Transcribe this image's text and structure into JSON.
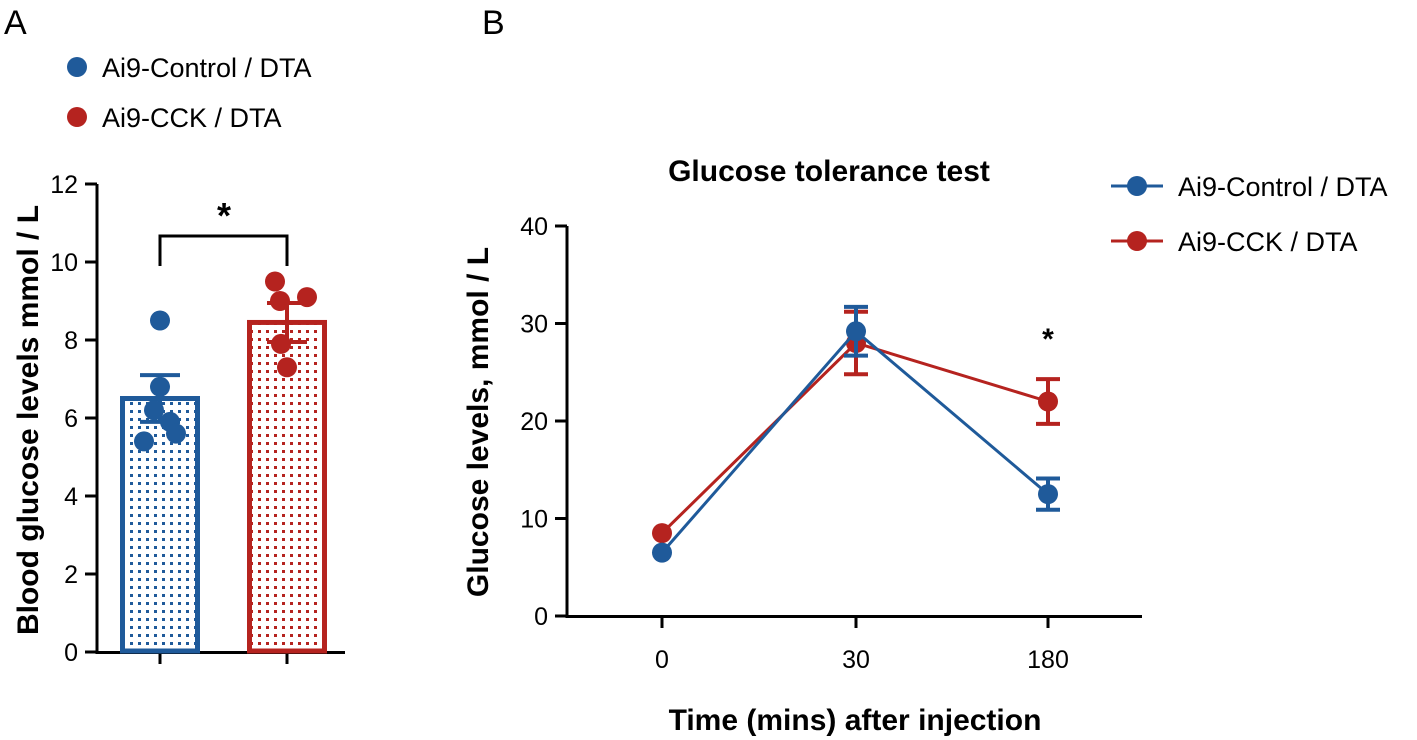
{
  "colors": {
    "control": "#1f5a9a",
    "cck": "#b5231f",
    "axis": "#000000"
  },
  "chart_data": [
    {
      "panel": "A",
      "type": "bar",
      "title": "",
      "xlabel": "",
      "ylabel": "Blood glucose levels mmol / L",
      "ylim": [
        0,
        12
      ],
      "yticks": [
        "0",
        "2",
        "4",
        "6",
        "8",
        "10",
        "12"
      ],
      "categories": [
        "Ai9-Control / DTA",
        "Ai9-CCK / DTA"
      ],
      "series": [
        {
          "name": "Ai9-Control / DTA",
          "value": 6.5,
          "sem": 0.6,
          "points": [
            8.5,
            6.8,
            6.2,
            5.9,
            5.4,
            5.6
          ],
          "color": "#1f5a9a"
        },
        {
          "name": "Ai9-CCK / DTA",
          "value": 8.45,
          "sem": 0.5,
          "points": [
            9.5,
            9.1,
            9.0,
            7.9,
            7.3
          ],
          "color": "#b5231f"
        }
      ],
      "significance": "*",
      "legend": [
        "Ai9-Control / DTA",
        "Ai9-CCK / DTA"
      ]
    },
    {
      "panel": "B",
      "type": "line",
      "title": "Glucose tolerance test",
      "xlabel": "Time (mins) after injection",
      "ylabel": "Glucose levels,  mmol / L",
      "categories": [
        "0",
        "30",
        "180"
      ],
      "ylim": [
        0,
        40
      ],
      "yticks": [
        "0",
        "10",
        "20",
        "30",
        "40"
      ],
      "series": [
        {
          "name": "Ai9-Control / DTA",
          "values": [
            6.5,
            29.2,
            12.5
          ],
          "sem": [
            0.0,
            2.5,
            1.6
          ],
          "color": "#1f5a9a"
        },
        {
          "name": "Ai9-CCK / DTA",
          "values": [
            8.5,
            28.0,
            22.0
          ],
          "sem": [
            0.0,
            3.2,
            2.3
          ],
          "color": "#b5231f"
        }
      ],
      "significance": {
        "category": "180",
        "label": "*"
      },
      "legend": [
        "Ai9-Control / DTA",
        "Ai9-CCK / DTA"
      ]
    }
  ]
}
